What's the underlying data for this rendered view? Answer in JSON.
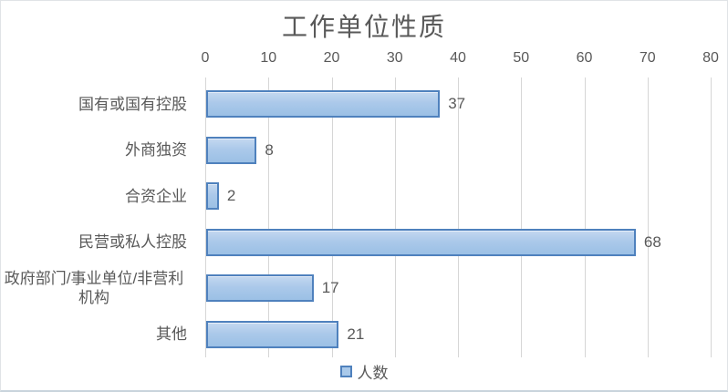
{
  "chart_data": {
    "type": "bar",
    "orientation": "horizontal",
    "title": "工作单位性质",
    "categories": [
      "国有或国有控股",
      "外商独资",
      "合资企业",
      "民营或私人控股",
      "政府部门/事业单位/非营利\n机构",
      "其他"
    ],
    "values": [
      37,
      8,
      2,
      68,
      17,
      21
    ],
    "series_name": "人数",
    "data_labels": [
      37,
      8,
      2,
      68,
      17,
      21
    ],
    "x_ticks": [
      0,
      10,
      20,
      30,
      40,
      50,
      60,
      70,
      80
    ],
    "xlim": [
      0,
      80
    ],
    "xlabel": "",
    "ylabel": "",
    "grid": "vertical-major",
    "legend_position": "bottom",
    "axis_position": "top",
    "colors": {
      "bar_fill": "#abc9ea",
      "bar_fill_highlight": "#c4d8f0",
      "bar_border": "#4f81bd",
      "gridline": "#d6d6d6",
      "text": "#595959",
      "background": "#ffffff",
      "frame_border": "#c9d4dc"
    }
  }
}
